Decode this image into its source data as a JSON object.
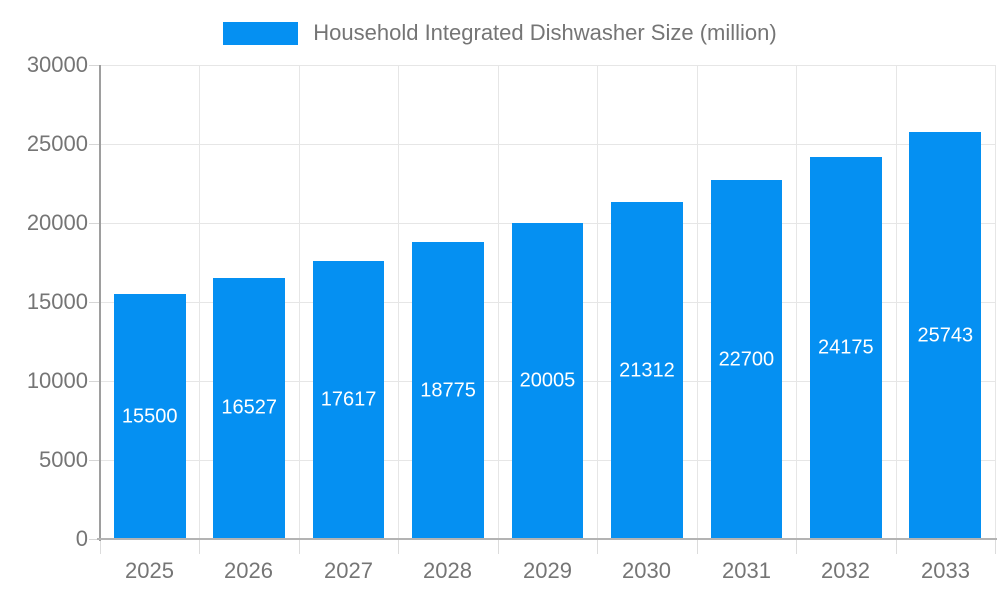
{
  "legend": {
    "series_label": "Household Integrated Dishwasher Size (million)"
  },
  "colors": {
    "bar": "#0590F2",
    "axis_text": "#757575",
    "value_text": "#ffffff",
    "gridline": "#e6e6e6",
    "x_axis_line": "#b3b3b3",
    "y_axis_line": "#9e9e9e",
    "background": "#ffffff"
  },
  "chart_data": {
    "type": "bar",
    "title": "Household Integrated Dishwasher Size (million)",
    "categories": [
      "2025",
      "2026",
      "2027",
      "2028",
      "2029",
      "2030",
      "2031",
      "2032",
      "2033"
    ],
    "values": [
      15500,
      16527,
      17617,
      18775,
      20005,
      21312,
      22700,
      24175,
      25743
    ],
    "series": [
      {
        "name": "Household Integrated Dishwasher Size (million)",
        "values": [
          15500,
          16527,
          17617,
          18775,
          20005,
          21312,
          22700,
          24175,
          25743
        ]
      }
    ],
    "xlabel": "",
    "ylabel": "",
    "ylim": [
      0,
      30000
    ],
    "y_ticks": [
      0,
      5000,
      10000,
      15000,
      20000,
      25000,
      30000
    ],
    "y_tick_labels": [
      "0",
      "5000",
      "10000",
      "15000",
      "20000",
      "25000",
      "30000"
    ],
    "grid": true,
    "legend_position": "top-center",
    "value_labels": "inside-bar-centered-white"
  }
}
